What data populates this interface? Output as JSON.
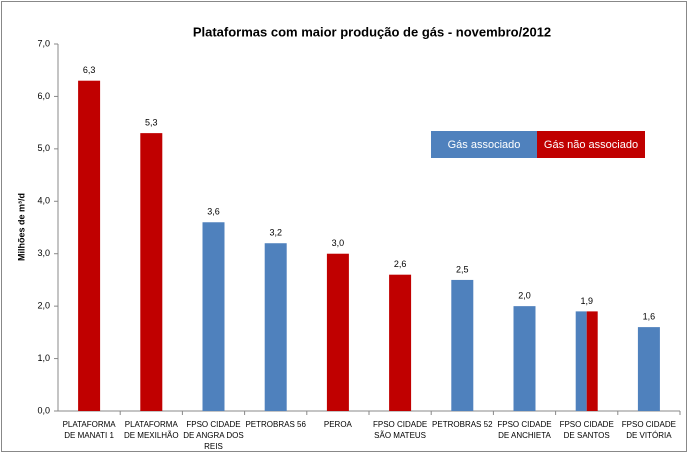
{
  "chart_data": {
    "type": "bar",
    "title": "Plataformas com maior produção de gás - novembro/2012",
    "y_label": "Milhões de m³/d",
    "categories": [
      "PLATAFORMA DE MANATI 1",
      "PLATAFORMA DE MEXILHÃO",
      "FPSO CIDADE DE ANGRA DOS REIS",
      "PETROBRAS 56",
      "PEROA",
      "FPSO CIDADE SÃO MATEUS",
      "PETROBRAS 52",
      "FPSO CIDADE DE ANCHIETA",
      "FPSO CIDADE DE SANTOS",
      "FPSO CIDADE DE VITÓRIA"
    ],
    "series": [
      {
        "name": "Gás associado",
        "color": "#4f81bd",
        "values": [
          null,
          null,
          3.6,
          3.2,
          null,
          null,
          2.5,
          2.0,
          1.9,
          1.6
        ],
        "value_labels": [
          null,
          null,
          "3,6",
          "3,2",
          null,
          null,
          "2,5",
          "2,0",
          "1,9",
          "1,6"
        ]
      },
      {
        "name": "Gás não associado",
        "color": "#c00000",
        "values": [
          6.3,
          5.3,
          null,
          null,
          3.0,
          2.6,
          null,
          null,
          1.9,
          null
        ],
        "value_labels": [
          "6,3",
          "5,3",
          null,
          null,
          "3,0",
          "2,6",
          null,
          null,
          null,
          null
        ]
      }
    ],
    "ylim": [
      0,
      7
    ],
    "yticks": [
      {
        "value": 0,
        "label": "0,0"
      },
      {
        "value": 1,
        "label": "1,0"
      },
      {
        "value": 2,
        "label": "2,0"
      },
      {
        "value": 3,
        "label": "3,0"
      },
      {
        "value": 4,
        "label": "4,0"
      },
      {
        "value": 5,
        "label": "5,0"
      },
      {
        "value": 6,
        "label": "6,0"
      },
      {
        "value": 7,
        "label": "7,0"
      }
    ],
    "grid": false
  }
}
